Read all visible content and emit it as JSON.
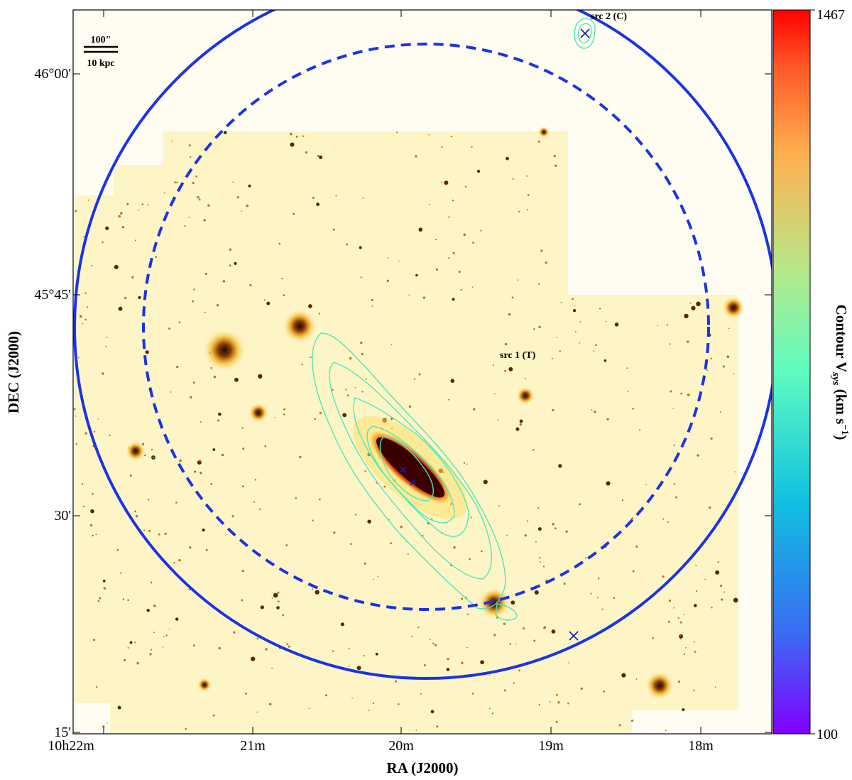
{
  "figure": {
    "ra_label": "RA (J2000)",
    "dec_label": "DEC (J2000)",
    "ra_ticks": [
      "10h22m",
      "21m",
      "20m",
      "19m",
      "18m"
    ],
    "dec_ticks": [
      "46°00'",
      "45°45'",
      "30'",
      "15'"
    ],
    "scalebar": {
      "top": "100\"",
      "bottom": "10 kpc"
    },
    "sources": [
      {
        "label": "src 2 (C)"
      },
      {
        "label": "src 1 (T)"
      }
    ],
    "colorbar": {
      "max_label": "1467",
      "min_label": "100",
      "label": "Contour V_sys (km s^-1)",
      "colormap": [
        "#8000ff",
        "#3a6cf4",
        "#10c0e0",
        "#5dfcc0",
        "#b6e88a",
        "#ffb050",
        "#ff5a28",
        "#ff0000"
      ]
    },
    "colors": {
      "contour": "#4fe8b8",
      "circle": "#1a33e6",
      "marker": "#1a1aa8"
    }
  }
}
